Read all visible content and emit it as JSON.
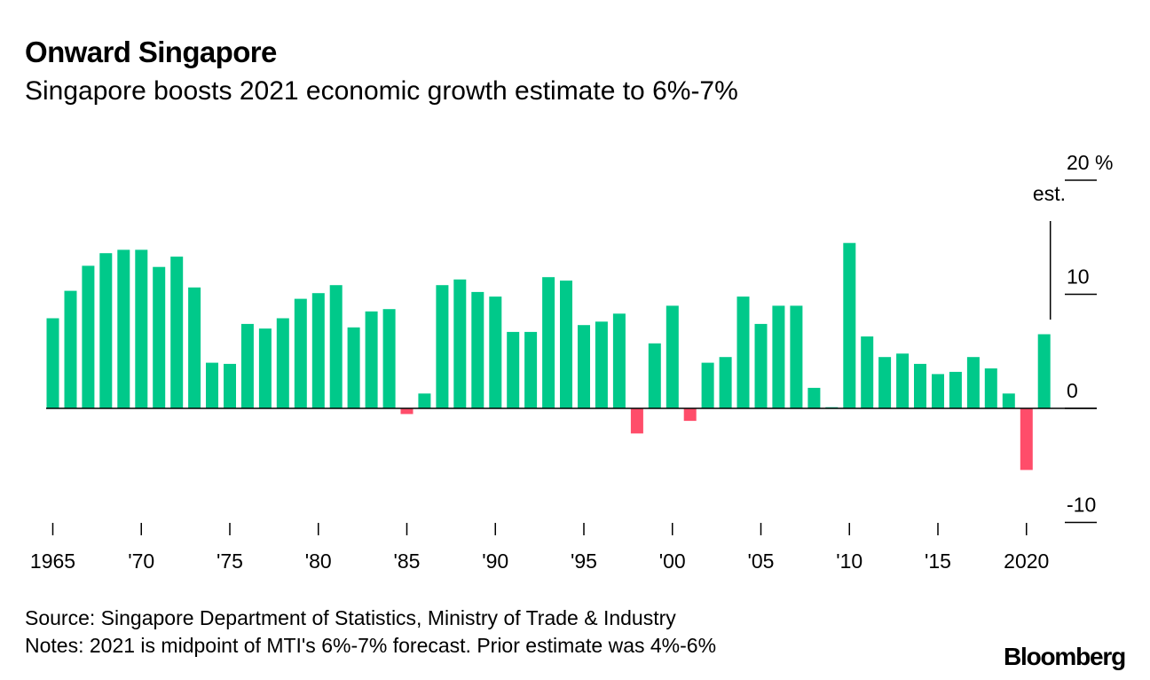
{
  "header": {
    "title": "Onward Singapore",
    "subtitle": "Singapore boosts 2021 economic growth estimate to 6%-7%"
  },
  "footer": {
    "source": "Source: Singapore Department of Statistics, Ministry of Trade & Industry",
    "notes": "Notes: 2021 is midpoint of MTI's 6%-7% forecast. Prior estimate was 4%-6%",
    "brand": "Bloomberg"
  },
  "colors": {
    "positive": "#00C98A",
    "negative": "#FF4D6A",
    "axis": "#000000"
  },
  "chart_data": {
    "type": "bar",
    "title": "Onward Singapore",
    "subtitle": "Singapore boosts 2021 economic growth estimate to 6%-7%",
    "xlabel": "",
    "ylabel": "%",
    "ylim": [
      -10,
      20
    ],
    "yticks": [
      {
        "value": 20,
        "label": "20 %"
      },
      {
        "value": 10,
        "label": "10"
      },
      {
        "value": 0,
        "label": "0"
      },
      {
        "value": -10,
        "label": "-10"
      }
    ],
    "xticks": [
      {
        "year": 1965,
        "label": "1965"
      },
      {
        "year": 1970,
        "label": "'70"
      },
      {
        "year": 1975,
        "label": "'75"
      },
      {
        "year": 1980,
        "label": "'80"
      },
      {
        "year": 1985,
        "label": "'85"
      },
      {
        "year": 1990,
        "label": "'90"
      },
      {
        "year": 1995,
        "label": "'95"
      },
      {
        "year": 2000,
        "label": "'00"
      },
      {
        "year": 2005,
        "label": "'05"
      },
      {
        "year": 2010,
        "label": "'10"
      },
      {
        "year": 2015,
        "label": "'15"
      },
      {
        "year": 2020,
        "label": "2020"
      }
    ],
    "annotation": {
      "year": 2021,
      "text": "est."
    },
    "categories": [
      1965,
      1966,
      1967,
      1968,
      1969,
      1970,
      1971,
      1972,
      1973,
      1974,
      1975,
      1976,
      1977,
      1978,
      1979,
      1980,
      1981,
      1982,
      1983,
      1984,
      1985,
      1986,
      1987,
      1988,
      1989,
      1990,
      1991,
      1992,
      1993,
      1994,
      1995,
      1996,
      1997,
      1998,
      1999,
      2000,
      2001,
      2002,
      2003,
      2004,
      2005,
      2006,
      2007,
      2008,
      2009,
      2010,
      2011,
      2012,
      2013,
      2014,
      2015,
      2016,
      2017,
      2018,
      2019,
      2020,
      2021
    ],
    "values": [
      7.9,
      10.3,
      12.5,
      13.6,
      13.9,
      13.9,
      12.4,
      13.3,
      10.6,
      4.0,
      3.9,
      7.4,
      7.0,
      7.9,
      9.6,
      10.1,
      10.8,
      7.1,
      8.5,
      8.7,
      -0.5,
      1.3,
      10.8,
      11.3,
      10.2,
      9.8,
      6.7,
      6.7,
      11.5,
      11.2,
      7.3,
      7.6,
      8.3,
      -2.2,
      5.7,
      9.0,
      -1.1,
      4.0,
      4.5,
      9.8,
      7.4,
      9.0,
      9.0,
      1.8,
      0.1,
      14.5,
      6.3,
      4.5,
      4.8,
      3.9,
      3.0,
      3.2,
      4.5,
      3.5,
      1.3,
      -5.4,
      6.5
    ]
  }
}
